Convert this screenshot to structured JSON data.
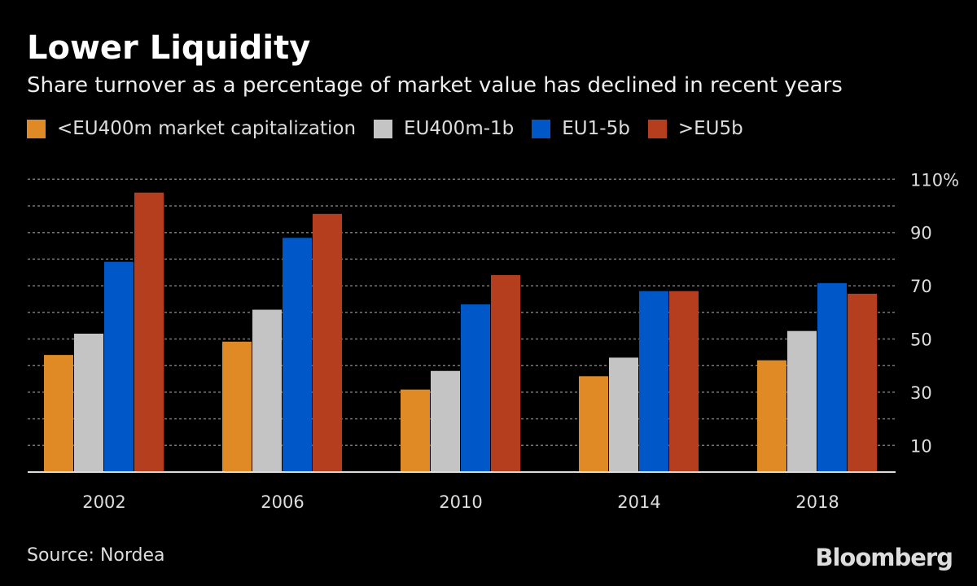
{
  "title": "Lower Liquidity",
  "subtitle": "Share turnover as a percentage of market value has declined in recent years",
  "source": "Source: Nordea",
  "logo": "Bloomberg",
  "chart_data": {
    "type": "bar",
    "categories": [
      "2002",
      "2006",
      "2010",
      "2014",
      "2018"
    ],
    "series": [
      {
        "name": "<EU400m market capitalization",
        "color": "#e08a25",
        "values": [
          44,
          49,
          31,
          36,
          42
        ]
      },
      {
        "name": "EU400m-1b",
        "color": "#c4c4c4",
        "values": [
          52,
          61,
          38,
          43,
          53
        ]
      },
      {
        "name": "EU1-5b",
        "color": "#0057c8",
        "values": [
          79,
          88,
          63,
          68,
          71
        ]
      },
      {
        "name": ">EU5b",
        "color": "#b53e1f",
        "values": [
          105,
          97,
          74,
          68,
          67
        ]
      }
    ],
    "ylim": [
      0,
      110
    ],
    "yticks": [
      10,
      30,
      50,
      70,
      90,
      110
    ],
    "ytick_labels": [
      "10",
      "30",
      "50",
      "70",
      "90",
      "110%"
    ],
    "grid": true,
    "legend": "top-left",
    "xlabel": "",
    "ylabel": ""
  }
}
